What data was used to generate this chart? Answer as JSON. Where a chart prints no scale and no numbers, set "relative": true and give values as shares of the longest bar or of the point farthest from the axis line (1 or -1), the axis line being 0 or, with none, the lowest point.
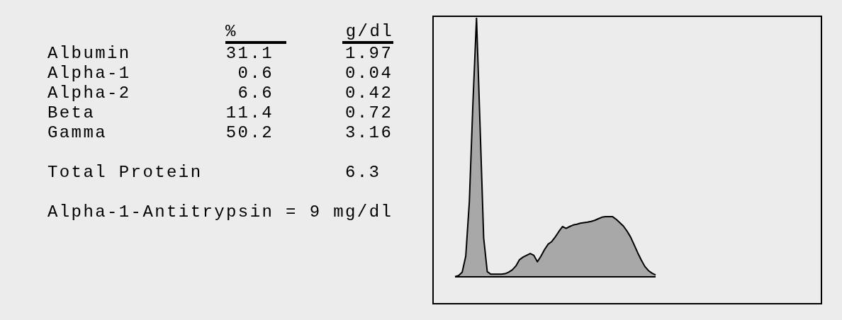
{
  "chart_data": [
    {
      "type": "other",
      "data_labels": true,
      "categories": [
        "Albumin",
        "Alpha-1",
        "Alpha-2",
        "Beta",
        "Gamma",
        "Total Protein"
      ],
      "series": [
        {
          "name": "%",
          "values": [
            31.1,
            0.6,
            6.6,
            11.4,
            50.2,
            null
          ]
        },
        {
          "name": "g/dl",
          "values": [
            1.97,
            0.04,
            0.42,
            0.72,
            3.16,
            6.3
          ]
        }
      ],
      "annotations": [
        "Alpha-1-Antitrypsin = 9 mg/dl"
      ]
    },
    {
      "type": "area",
      "relative": true,
      "tick_labels": false,
      "grid": false,
      "legend": false,
      "categories": [
        null,
        null,
        null,
        null,
        null,
        null,
        null,
        null,
        null,
        null,
        null,
        null,
        null,
        null,
        null,
        null,
        null,
        null,
        null,
        null,
        null,
        null,
        null,
        null,
        null,
        null,
        null,
        null,
        null,
        null,
        null,
        null,
        null,
        null,
        null,
        null,
        null,
        null,
        null,
        null,
        null,
        null,
        null,
        null,
        null,
        null,
        null,
        null,
        null,
        null,
        null,
        null,
        null,
        null,
        null,
        null,
        null
      ],
      "series": [
        {
          "color": "#a8a8a8",
          "values": [
            0.001,
            0.005,
            0.018,
            0.08,
            0.29,
            0.67,
            1.0,
            0.58,
            0.15,
            0.02,
            0.01,
            0.01,
            0.01,
            0.01,
            0.012,
            0.018,
            0.027,
            0.042,
            0.066,
            0.076,
            0.083,
            0.09,
            0.083,
            0.058,
            0.08,
            0.105,
            0.126,
            0.136,
            0.154,
            0.175,
            0.194,
            0.187,
            0.194,
            0.2,
            0.203,
            0.207,
            0.209,
            0.211,
            0.214,
            0.218,
            0.224,
            0.23,
            0.232,
            0.232,
            0.232,
            0.222,
            0.209,
            0.196,
            0.177,
            0.154,
            0.124,
            0.093,
            0.065,
            0.04,
            0.024,
            0.014,
            0.007
          ]
        }
      ]
    }
  ]
}
